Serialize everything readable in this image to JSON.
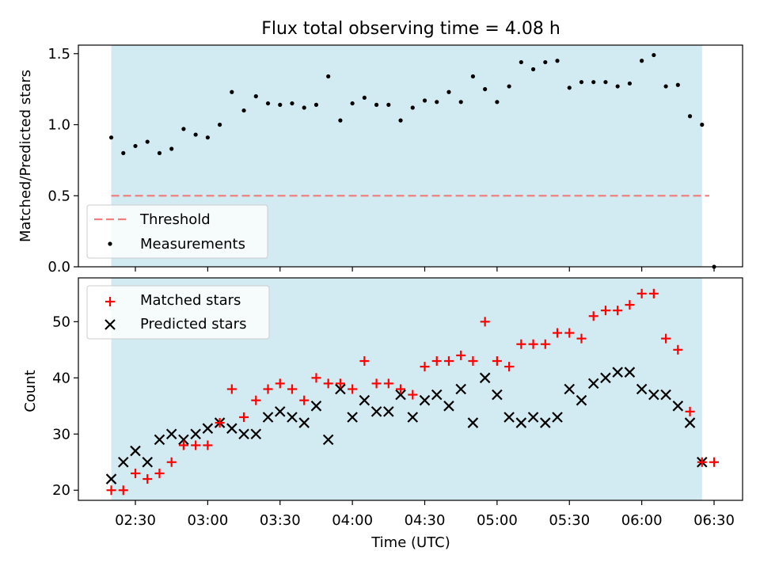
{
  "chart_data": {
    "title": "Flux total observing time = 4.08 h",
    "xlabel": "Time (UTC)",
    "x_ticks": [
      "02:30",
      "03:00",
      "03:30",
      "04:00",
      "04:30",
      "05:00",
      "05:30",
      "06:00",
      "06:30"
    ],
    "shaded_interval": [
      "02:20",
      "06:25"
    ],
    "colors": {
      "shade": "#add8e6",
      "threshold": "#f08080",
      "measurements": "#000000",
      "matched": "#ff0000",
      "predicted": "#000000"
    },
    "top_panel": {
      "type": "scatter",
      "ylabel": "Matched/Predicted stars",
      "ylim": [
        0.0,
        1.56
      ],
      "y_ticks": [
        "0.0",
        "0.5",
        "1.0",
        "1.5"
      ],
      "threshold": {
        "name": "Threshold",
        "value": 0.5,
        "x_range": [
          "02:20",
          "06:28"
        ]
      },
      "legend": [
        "Threshold",
        "Measurements"
      ],
      "legend_position": "lower-left",
      "series": [
        {
          "name": "Measurements",
          "x": [
            "02:20",
            "02:25",
            "02:30",
            "02:35",
            "02:40",
            "02:45",
            "02:50",
            "02:55",
            "03:00",
            "03:05",
            "03:10",
            "03:15",
            "03:20",
            "03:25",
            "03:30",
            "03:35",
            "03:40",
            "03:45",
            "03:50",
            "03:55",
            "04:00",
            "04:05",
            "04:10",
            "04:15",
            "04:20",
            "04:25",
            "04:30",
            "04:35",
            "04:40",
            "04:45",
            "04:50",
            "04:55",
            "05:00",
            "05:05",
            "05:10",
            "05:15",
            "05:20",
            "05:25",
            "05:30",
            "05:35",
            "05:40",
            "05:45",
            "05:50",
            "05:55",
            "06:00",
            "06:05",
            "06:10",
            "06:15",
            "06:20",
            "06:25",
            "06:30"
          ],
          "y": [
            0.91,
            0.8,
            0.85,
            0.88,
            0.8,
            0.83,
            0.97,
            0.93,
            0.91,
            1.0,
            1.23,
            1.1,
            1.2,
            1.15,
            1.14,
            1.15,
            1.12,
            1.14,
            1.34,
            1.03,
            1.15,
            1.19,
            1.14,
            1.14,
            1.03,
            1.12,
            1.17,
            1.16,
            1.23,
            1.16,
            1.34,
            1.25,
            1.16,
            1.27,
            1.44,
            1.39,
            1.44,
            1.45,
            1.26,
            1.3,
            1.3,
            1.3,
            1.27,
            1.29,
            1.45,
            1.49,
            1.27,
            1.28,
            1.06,
            1.0,
            0.0
          ]
        }
      ]
    },
    "bottom_panel": {
      "type": "scatter",
      "ylabel": "Count",
      "ylim": [
        18.2,
        57.8
      ],
      "y_ticks": [
        "20",
        "30",
        "40",
        "50"
      ],
      "legend": [
        "Matched stars",
        "Predicted stars"
      ],
      "legend_position": "upper-left",
      "series": [
        {
          "name": "Matched stars",
          "marker": "+",
          "x": [
            "02:20",
            "02:25",
            "02:30",
            "02:35",
            "02:40",
            "02:45",
            "02:50",
            "02:55",
            "03:00",
            "03:05",
            "03:10",
            "03:15",
            "03:20",
            "03:25",
            "03:30",
            "03:35",
            "03:40",
            "03:45",
            "03:50",
            "03:55",
            "04:00",
            "04:05",
            "04:10",
            "04:15",
            "04:20",
            "04:25",
            "04:30",
            "04:35",
            "04:40",
            "04:45",
            "04:50",
            "04:55",
            "05:00",
            "05:05",
            "05:10",
            "05:15",
            "05:20",
            "05:25",
            "05:30",
            "05:35",
            "05:40",
            "05:45",
            "05:50",
            "05:55",
            "06:00",
            "06:05",
            "06:10",
            "06:15",
            "06:20",
            "06:25",
            "06:30"
          ],
          "y": [
            20,
            20,
            23,
            22,
            23,
            25,
            28,
            28,
            28,
            32,
            38,
            33,
            36,
            38,
            39,
            38,
            36,
            40,
            39,
            39,
            38,
            43,
            39,
            39,
            38,
            37,
            42,
            43,
            43,
            44,
            43,
            50,
            43,
            42,
            46,
            46,
            46,
            48,
            48,
            47,
            51,
            52,
            52,
            53,
            55,
            55,
            47,
            45,
            34,
            25,
            25
          ]
        },
        {
          "name": "Predicted stars",
          "marker": "x",
          "x": [
            "02:20",
            "02:25",
            "02:30",
            "02:35",
            "02:40",
            "02:45",
            "02:50",
            "02:55",
            "03:00",
            "03:05",
            "03:10",
            "03:15",
            "03:20",
            "03:25",
            "03:30",
            "03:35",
            "03:40",
            "03:45",
            "03:50",
            "03:55",
            "04:00",
            "04:05",
            "04:10",
            "04:15",
            "04:20",
            "04:25",
            "04:30",
            "04:35",
            "04:40",
            "04:45",
            "04:50",
            "04:55",
            "05:00",
            "05:05",
            "05:10",
            "05:15",
            "05:20",
            "05:25",
            "05:30",
            "05:35",
            "05:40",
            "05:45",
            "05:50",
            "05:55",
            "06:00",
            "06:05",
            "06:10",
            "06:15",
            "06:20",
            "06:25"
          ],
          "y": [
            22,
            25,
            27,
            25,
            29,
            30,
            29,
            30,
            31,
            32,
            31,
            30,
            30,
            33,
            34,
            33,
            32,
            35,
            29,
            38,
            33,
            36,
            34,
            34,
            37,
            33,
            36,
            37,
            35,
            38,
            32,
            40,
            37,
            33,
            32,
            33,
            32,
            33,
            38,
            36,
            39,
            40,
            41,
            41,
            38,
            37,
            37,
            35,
            32,
            25
          ]
        }
      ]
    }
  }
}
